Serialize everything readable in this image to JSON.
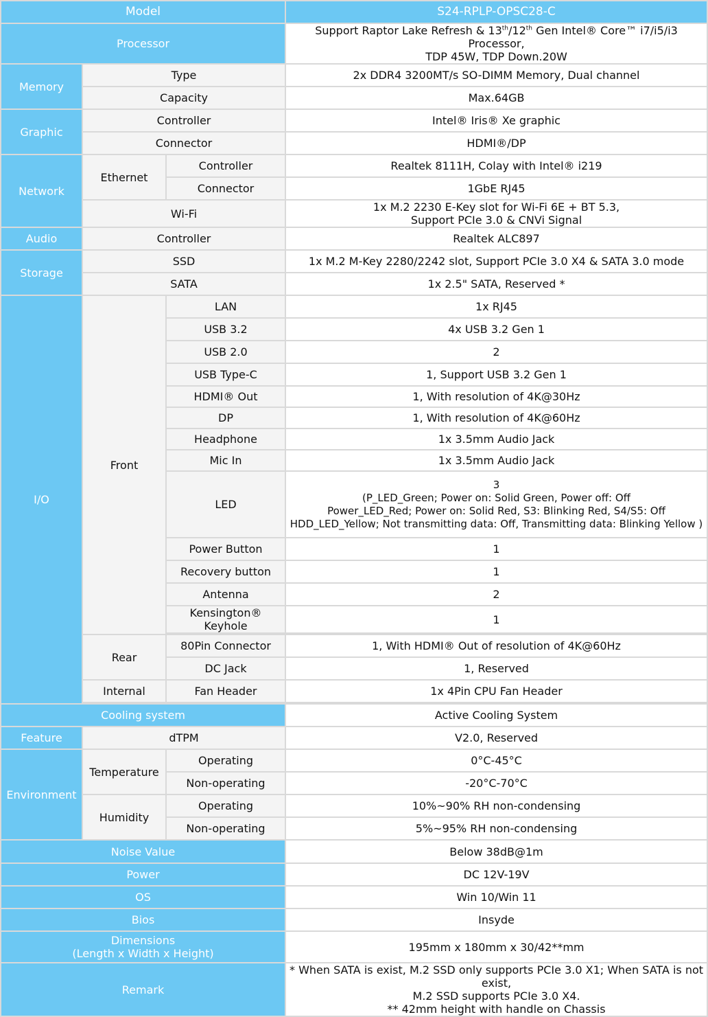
{
  "header": {
    "model_label": "Model",
    "model_value": "S24-RPLP-OPSC28-C"
  },
  "processor": {
    "label": "Processor",
    "line1_pre": "Support Raptor Lake Refresh & 13",
    "sup1": "th",
    "line1_mid": "/12",
    "sup2": "th",
    "line1_post": " Gen Intel® Core™ i7/i5/i3 Processor,",
    "line2": "TDP 45W, TDP Down.20W"
  },
  "memory": {
    "label": "Memory",
    "type_label": "Type",
    "type_value": "2x DDR4 3200MT/s SO-DIMM Memory, Dual channel",
    "capacity_label": "Capacity",
    "capacity_value": "Max.64GB"
  },
  "graphic": {
    "label": "Graphic",
    "controller_label": "Controller",
    "controller_value": "Intel® Iris® Xe graphic",
    "connector_label": "Connector",
    "connector_value": "HDMI®/DP"
  },
  "network": {
    "label": "Network",
    "ethernet_label": "Ethernet",
    "eth_controller_label": "Controller",
    "eth_controller_value": "Realtek 8111H, Colay with Intel® i219",
    "eth_connector_label": "Connector",
    "eth_connector_value": "1GbE RJ45",
    "wifi_label": "Wi-Fi",
    "wifi_line1": "1x M.2 2230 E-Key slot for Wi-Fi 6E + BT 5.3,",
    "wifi_line2": "Support PCIe 3.0 & CNVi Signal"
  },
  "audio": {
    "label": "Audio",
    "controller_label": "Controller",
    "controller_value": "Realtek ALC897"
  },
  "storage": {
    "label": "Storage",
    "ssd_label": "SSD",
    "ssd_value": "1x M.2 M-Key 2280/2242 slot, Support PCIe 3.0 X4 & SATA 3.0 mode",
    "sata_label": "SATA",
    "sata_value": "1x 2.5\" SATA, Reserved *"
  },
  "io": {
    "label": "I/O",
    "front_label": "Front",
    "front": [
      {
        "label": "LAN",
        "value": "1x RJ45"
      },
      {
        "label": "USB 3.2",
        "value": "4x USB 3.2 Gen 1"
      },
      {
        "label": "USB 2.0",
        "value": "2"
      },
      {
        "label": "USB Type-C",
        "value": "1, Support USB 3.2 Gen 1"
      },
      {
        "label": "HDMI® Out",
        "value": "1, With resolution of 4K@30Hz"
      },
      {
        "label": "DP",
        "value": "1, With resolution of 4K@60Hz"
      },
      {
        "label": "Headphone",
        "value": "1x 3.5mm Audio Jack"
      },
      {
        "label": "Mic In",
        "value": "1x 3.5mm Audio Jack"
      }
    ],
    "led_label": "LED",
    "led_line1": "3",
    "led_line2": "(P_LED_Green; Power on: Solid Green, Power off: Off",
    "led_line3": "Power_LED_Red; Power on: Solid Red, S3: Blinking Red, S4/S5: Off",
    "led_line4": "HDD_LED_Yellow; Not transmitting data: Off, Transmitting data: Blinking Yellow )",
    "front2": [
      {
        "label": "Power Button",
        "value": "1"
      },
      {
        "label": "Recovery button",
        "value": "1"
      },
      {
        "label": "Antenna",
        "value": "2"
      },
      {
        "label": "Kensington® Keyhole",
        "value": "1"
      }
    ],
    "rear_label": "Rear",
    "rear": [
      {
        "label": "80Pin Connector",
        "value": "1, With HDMI® Out of resolution of 4K@60Hz"
      },
      {
        "label": "DC Jack",
        "value": "1, Reserved"
      }
    ],
    "internal_label": "Internal",
    "fan_label": "Fan Header",
    "fan_value": "1x 4Pin CPU Fan Header"
  },
  "cooling": {
    "label": "Cooling system",
    "value": "Active Cooling System"
  },
  "feature": {
    "label": "Feature",
    "sub_label": "dTPM",
    "value": "V2.0, Reserved"
  },
  "environment": {
    "label": "Environment",
    "temperature_label": "Temperature",
    "temp_op_label": "Operating",
    "temp_op_value": "0°C-45°C",
    "temp_nonop_label": "Non-operating",
    "temp_nonop_value": "-20°C-70°C",
    "humidity_label": "Humidity",
    "hum_op_label": "Operating",
    "hum_op_value": "10%~90% RH non-condensing",
    "hum_nonop_label": "Non-operating",
    "hum_nonop_value": "5%~95% RH non-condensing"
  },
  "noise": {
    "label": "Noise Value",
    "value": "Below 38dB@1m"
  },
  "power": {
    "label": "Power",
    "value": "DC 12V-19V"
  },
  "os": {
    "label": "OS",
    "value": "Win 10/Win 11"
  },
  "bios": {
    "label": "Bios",
    "value": "Insyde"
  },
  "dimensions": {
    "label_line1": "Dimensions",
    "label_line2": "(Length x Width x Height)",
    "value": "195mm x 180mm x 30/42**mm"
  },
  "remark": {
    "label": "Remark",
    "line1": "* When SATA is exist, M.2 SSD only supports PCIe 3.0 X1; When SATA is not exist,",
    "line2": "M.2 SSD supports PCIe 3.0 X4.",
    "line3": "** 42mm height with handle on Chassis"
  },
  "colors": {
    "header_bg": "#6cc8f3",
    "sub_bg": "#f4f4f4",
    "border": "#d9d9d9"
  }
}
